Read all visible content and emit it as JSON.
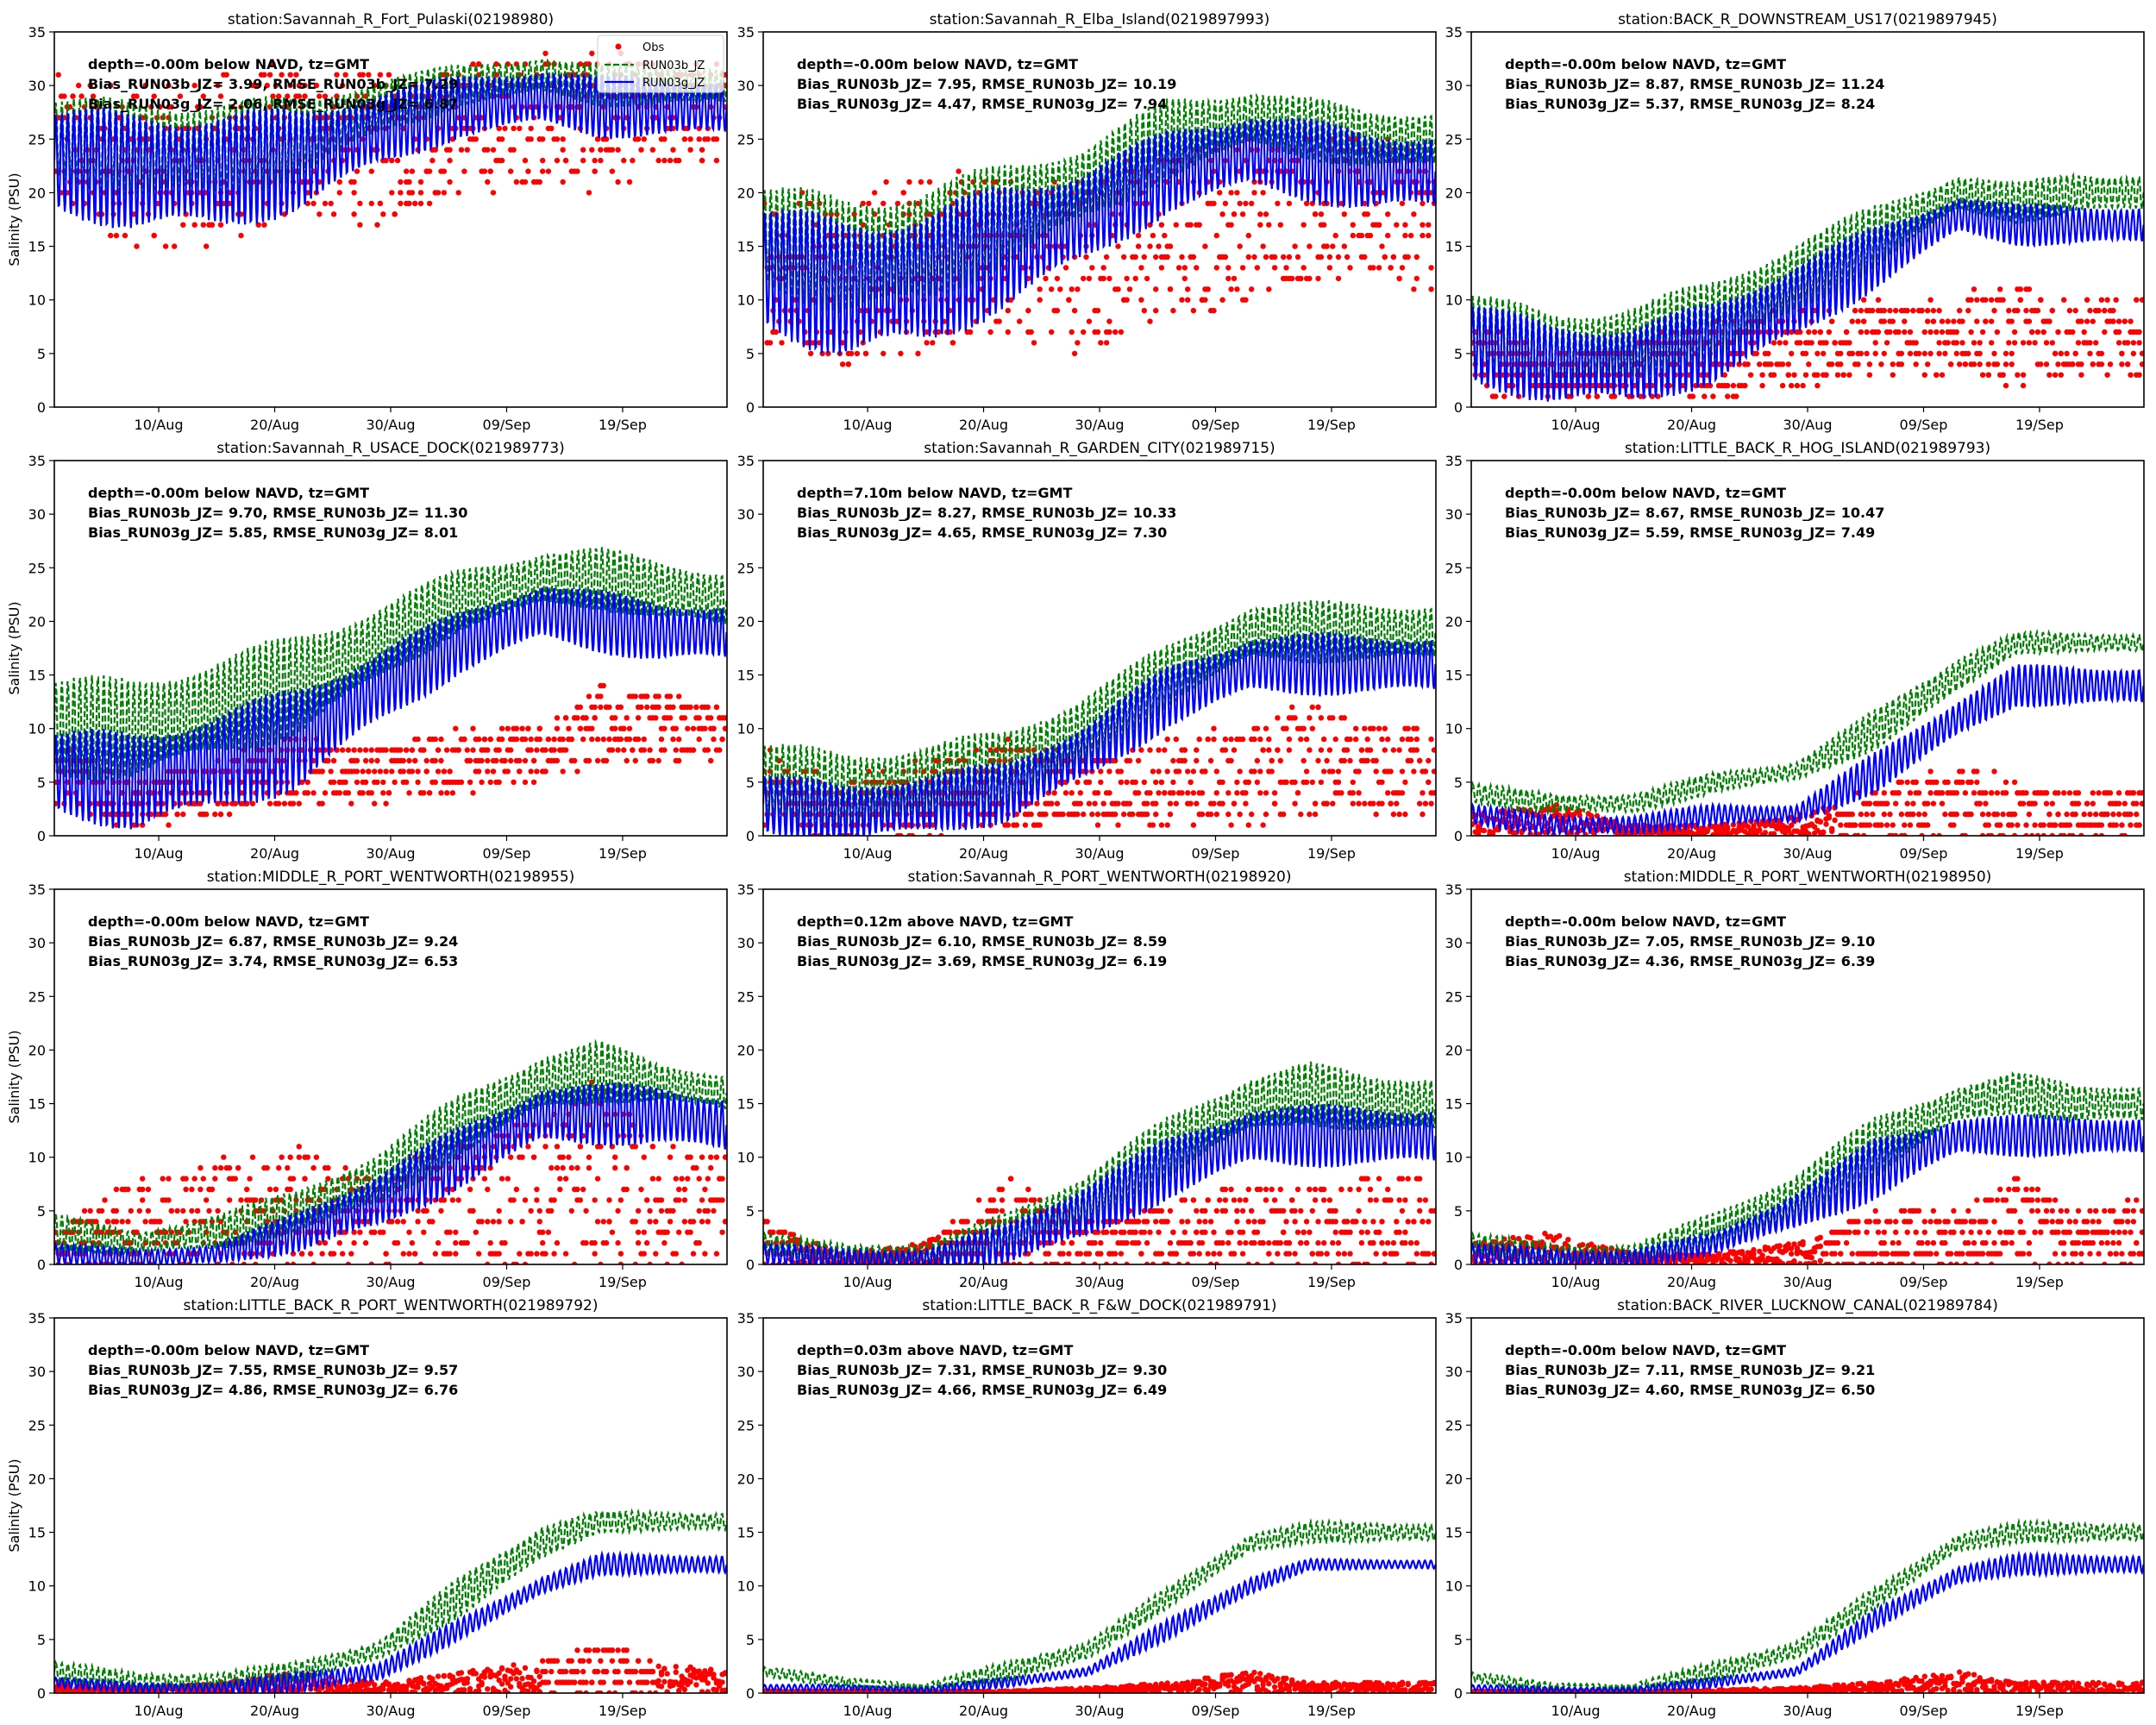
{
  "figure": {
    "ylabel": "Salinity (PSU)",
    "legend": {
      "placement": "upper-right of first panel",
      "entries": [
        {
          "label": "Obs",
          "style": "red dots",
          "color": "#ff0000"
        },
        {
          "label": "RUN03b_JZ",
          "style": "green dashed line",
          "color": "#008000"
        },
        {
          "label": "RUN03g_JZ",
          "style": "blue solid line",
          "color": "#0000ff"
        }
      ]
    }
  },
  "chart_data": {
    "type": "line",
    "layout": "4x3 grid of time-series panels",
    "x_range": [
      "01/Aug",
      "28/Sep"
    ],
    "x_ticks": [
      "10/Aug",
      "20/Aug",
      "30/Aug",
      "09/Sep",
      "19/Sep"
    ],
    "x_tick_days": [
      9,
      19,
      29,
      39,
      49
    ],
    "x_span_days": 58,
    "ylim": [
      0,
      35
    ],
    "y_ticks": [
      0,
      5,
      10,
      15,
      20,
      25,
      30,
      35
    ],
    "grid": false,
    "anchor_days": [
      0,
      7,
      14,
      21,
      28,
      35,
      42,
      47,
      52,
      58
    ],
    "panels": [
      {
        "title": "station:Savannah_R_Fort_Pulaski(02198980)",
        "annot": [
          "depth=-0.00m below NAVD, tz=GMT",
          "Bias_RUN03b_JZ=  3.99, RMSE_RUN03b_JZ=  7.29",
          "Bias_RUN03g_JZ=  2.06, RMSE_RUN03g_JZ=  6.87"
        ],
        "show_ylabel": true,
        "show_legend": true,
        "run03b": {
          "mean": [
            25,
            24,
            24,
            25,
            28,
            30,
            31,
            30,
            30,
            30
          ],
          "amp": [
            4,
            5,
            5,
            4,
            3,
            2,
            2,
            2,
            2,
            2
          ]
        },
        "run03g": {
          "mean": [
            23,
            22,
            22,
            23,
            26,
            28,
            29,
            28,
            28,
            28
          ],
          "amp": [
            5,
            6,
            6,
            5,
            4,
            3,
            3,
            3,
            3,
            3
          ]
        },
        "obs": {
          "low": [
            18,
            15,
            15,
            18,
            17,
            20,
            21,
            20,
            22,
            23
          ],
          "high": [
            31,
            30,
            31,
            32,
            31,
            32,
            33,
            33,
            32,
            32
          ]
        }
      },
      {
        "title": "station:Savannah_R_Elba_Island(0219897993)",
        "annot": [
          "depth=-0.00m below NAVD, tz=GMT",
          "Bias_RUN03b_JZ=  7.95, RMSE_RUN03b_JZ= 10.19",
          "Bias_RUN03g_JZ=  4.47, RMSE_RUN03g_JZ=  7.94"
        ],
        "show_ylabel": false,
        "show_legend": false,
        "run03b": {
          "mean": [
            16,
            14,
            15,
            18,
            21,
            25,
            27,
            26,
            25,
            25
          ],
          "amp": [
            5,
            6,
            6,
            5,
            4,
            4,
            3,
            3,
            3,
            3
          ]
        },
        "run03g": {
          "mean": [
            13,
            11,
            12,
            15,
            18,
            22,
            24,
            23,
            22,
            22
          ],
          "amp": [
            6,
            7,
            7,
            6,
            5,
            4,
            4,
            4,
            4,
            4
          ]
        },
        "obs": {
          "low": [
            6,
            4,
            5,
            7,
            5,
            8,
            10,
            12,
            12,
            11
          ],
          "high": [
            21,
            20,
            22,
            21,
            22,
            24,
            25,
            26,
            25,
            24
          ]
        }
      },
      {
        "title": "station:BACK_R_DOWNSTREAM_US17(0219897945)",
        "annot": [
          "depth=-0.00m below NAVD, tz=GMT",
          "Bias_RUN03b_JZ=  8.87, RMSE_RUN03b_JZ= 11.24",
          "Bias_RUN03g_JZ=  5.37, RMSE_RUN03g_JZ=  8.24"
        ],
        "show_ylabel": false,
        "show_legend": false,
        "run03b": {
          "mean": [
            7,
            5,
            6,
            8,
            12,
            16,
            20,
            19,
            20,
            20
          ],
          "amp": [
            4,
            4,
            4,
            4,
            4,
            3,
            2,
            2,
            2,
            2
          ]
        },
        "run03g": {
          "mean": [
            6,
            4,
            4,
            6,
            10,
            14,
            18,
            17,
            17,
            17
          ],
          "amp": [
            4,
            4,
            4,
            4,
            4,
            3,
            2,
            2,
            2,
            2
          ]
        },
        "obs": {
          "low": [
            1,
            1,
            1,
            1,
            2,
            3,
            3,
            2,
            3,
            3
          ],
          "high": [
            8,
            5,
            6,
            8,
            9,
            10,
            10,
            12,
            10,
            10
          ]
        }
      },
      {
        "title": "station:Savannah_R_USACE_DOCK(021989773)",
        "annot": [
          "depth=-0.00m below NAVD, tz=GMT",
          "Bias_RUN03b_JZ=  9.70, RMSE_RUN03b_JZ= 11.30",
          "Bias_RUN03g_JZ=  5.85, RMSE_RUN03g_JZ=  8.01"
        ],
        "show_ylabel": true,
        "show_legend": false,
        "run03b": {
          "mean": [
            10,
            10,
            12,
            14,
            18,
            22,
            24,
            24,
            23,
            22
          ],
          "amp": [
            5,
            5,
            5,
            5,
            4,
            3,
            3,
            3,
            3,
            3
          ]
        },
        "run03g": {
          "mean": [
            6,
            5,
            7,
            9,
            14,
            18,
            21,
            20,
            19,
            19
          ],
          "amp": [
            4,
            5,
            5,
            5,
            4,
            3,
            3,
            3,
            3,
            3
          ]
        },
        "obs": {
          "low": [
            3,
            1,
            2,
            3,
            3,
            4,
            5,
            7,
            7,
            7
          ],
          "high": [
            9,
            5,
            7,
            9,
            8,
            10,
            10,
            14,
            13,
            12
          ]
        }
      },
      {
        "title": "station:Savannah_R_GARDEN_CITY(021989715)",
        "annot": [
          "depth=7.10m below NAVD, tz=GMT",
          "Bias_RUN03b_JZ=  8.27, RMSE_RUN03b_JZ= 10.33",
          "Bias_RUN03g_JZ=  4.65, RMSE_RUN03g_JZ=  7.30"
        ],
        "show_ylabel": false,
        "show_legend": false,
        "run03b": {
          "mean": [
            5,
            4,
            5,
            6,
            10,
            15,
            19,
            19,
            19,
            19
          ],
          "amp": [
            4,
            4,
            4,
            4,
            4,
            3,
            3,
            3,
            3,
            3
          ]
        },
        "run03g": {
          "mean": [
            3,
            2,
            3,
            4,
            8,
            13,
            16,
            16,
            16,
            16
          ],
          "amp": [
            3,
            3,
            3,
            3,
            3,
            3,
            3,
            3,
            3,
            3
          ]
        },
        "obs": {
          "low": [
            1,
            0,
            0,
            1,
            1,
            1,
            1,
            2,
            2,
            2
          ],
          "high": [
            8,
            5,
            7,
            9,
            7,
            9,
            10,
            13,
            10,
            10
          ]
        }
      },
      {
        "title": "station:LITTLE_BACK_R_HOG_ISLAND(021989793)",
        "annot": [
          "depth=-0.00m below NAVD, tz=GMT",
          "Bias_RUN03b_JZ=  8.67, RMSE_RUN03b_JZ= 10.47",
          "Bias_RUN03g_JZ=  5.59, RMSE_RUN03g_JZ=  7.49"
        ],
        "show_ylabel": false,
        "show_legend": false,
        "run03b": {
          "mean": [
            4,
            3,
            3,
            5,
            6,
            10,
            15,
            18,
            18,
            18
          ],
          "amp": [
            1,
            1,
            1,
            1,
            1,
            2,
            2,
            1,
            1,
            1
          ]
        },
        "run03g": {
          "mean": [
            2,
            1,
            1,
            2,
            2,
            6,
            11,
            14,
            14,
            14
          ],
          "amp": [
            1,
            1,
            1,
            1,
            1,
            2,
            2,
            2,
            2,
            2
          ]
        },
        "obs": {
          "low": [
            0,
            0,
            0,
            0,
            0,
            0,
            0,
            0,
            0,
            0
          ],
          "high": [
            2,
            3,
            1,
            1,
            2,
            4,
            7,
            5,
            4,
            5
          ]
        }
      },
      {
        "title": "station:MIDDLE_R_PORT_WENTWORTH(02198955)",
        "annot": [
          "depth=-0.00m below NAVD, tz=GMT",
          "Bias_RUN03b_JZ=  6.87, RMSE_RUN03b_JZ=  9.24",
          "Bias_RUN03g_JZ=  3.74, RMSE_RUN03g_JZ=  6.53"
        ],
        "show_ylabel": true,
        "show_legend": false,
        "run03b": {
          "mean": [
            3,
            2,
            3,
            5,
            8,
            13,
            17,
            18,
            17,
            16
          ],
          "amp": [
            2,
            1,
            2,
            2,
            3,
            3,
            3,
            3,
            2,
            2
          ]
        },
        "run03g": {
          "mean": [
            1,
            0.5,
            1,
            3,
            6,
            10,
            14,
            14,
            14,
            13
          ],
          "amp": [
            1,
            1,
            1,
            2,
            3,
            3,
            3,
            3,
            3,
            3
          ]
        },
        "obs": {
          "low": [
            0,
            0,
            0,
            0,
            0,
            0,
            0,
            0,
            0,
            0
          ],
          "high": [
            3,
            8,
            10,
            11,
            8,
            12,
            14,
            17,
            11,
            10
          ]
        }
      },
      {
        "title": "station:Savannah_R_PORT_WENTWORTH(02198920)",
        "annot": [
          "depth=0.12m above NAVD, tz=GMT",
          "Bias_RUN03b_JZ=  6.10, RMSE_RUN03b_JZ=  8.59",
          "Bias_RUN03g_JZ=  3.69, RMSE_RUN03g_JZ=  6.19"
        ],
        "show_ylabel": false,
        "show_legend": false,
        "run03b": {
          "mean": [
            2,
            1,
            1,
            3,
            6,
            11,
            15,
            16,
            15,
            15
          ],
          "amp": [
            1,
            1,
            1,
            2,
            3,
            3,
            3,
            3,
            3,
            3
          ]
        },
        "run03g": {
          "mean": [
            1,
            0.5,
            0.5,
            2,
            5,
            9,
            12,
            12,
            12,
            12
          ],
          "amp": [
            1,
            1,
            1,
            2,
            3,
            3,
            3,
            3,
            3,
            3
          ]
        },
        "obs": {
          "low": [
            0,
            0,
            0,
            0,
            0,
            0,
            0,
            0,
            0,
            0
          ],
          "high": [
            4,
            1,
            2,
            8,
            4,
            6,
            7,
            7,
            8,
            8
          ]
        }
      },
      {
        "title": "station:MIDDLE_R_PORT_WENTWORTH(02198950)",
        "annot": [
          "depth=-0.00m below NAVD, tz=GMT",
          "Bias_RUN03b_JZ=  7.05, RMSE_RUN03b_JZ=  9.10",
          "Bias_RUN03g_JZ=  4.36, RMSE_RUN03g_JZ=  6.39"
        ],
        "show_ylabel": false,
        "show_legend": false,
        "run03b": {
          "mean": [
            2,
            1,
            1,
            3,
            6,
            11,
            15,
            16,
            15,
            15
          ],
          "amp": [
            1,
            1,
            1,
            2,
            3,
            3,
            2,
            2,
            2,
            2
          ]
        },
        "run03g": {
          "mean": [
            1,
            0.5,
            0.5,
            2,
            5,
            9,
            12,
            12,
            12,
            12
          ],
          "amp": [
            1,
            1,
            1,
            1,
            2,
            3,
            2,
            2,
            2,
            2
          ]
        },
        "obs": {
          "low": [
            0,
            0,
            0,
            0,
            0,
            0,
            0,
            0,
            0,
            0
          ],
          "high": [
            2,
            3,
            1,
            1,
            2,
            5,
            5,
            8,
            5,
            6
          ]
        }
      },
      {
        "title": "station:LITTLE_BACK_R_PORT_WENTWORTH(021989792)",
        "annot": [
          "depth=-0.00m below NAVD, tz=GMT",
          "Bias_RUN03b_JZ=  7.55, RMSE_RUN03b_JZ=  9.57",
          "Bias_RUN03g_JZ=  4.86, RMSE_RUN03g_JZ=  6.76"
        ],
        "show_ylabel": true,
        "show_legend": false,
        "run03b": {
          "mean": [
            2,
            1,
            1,
            2,
            4,
            9,
            14,
            16,
            16,
            16
          ],
          "amp": [
            1,
            1,
            1,
            1,
            1,
            2,
            2,
            1,
            1,
            1
          ]
        },
        "run03g": {
          "mean": [
            1,
            0.5,
            0.5,
            1,
            2,
            6,
            10,
            12,
            12,
            12
          ],
          "amp": [
            0.5,
            0.5,
            0.5,
            1,
            1,
            1,
            1,
            1,
            1,
            1
          ]
        },
        "obs": {
          "low": [
            0,
            0,
            0,
            0,
            0,
            0,
            0,
            0,
            0,
            0
          ],
          "high": [
            1,
            0.5,
            1,
            2,
            1,
            2,
            3,
            5,
            3,
            2
          ]
        }
      },
      {
        "title": "station:LITTLE_BACK_R_F&W_DOCK(021989791)",
        "annot": [
          "depth=0.03m above NAVD, tz=GMT",
          "Bias_RUN03b_JZ=  7.31, RMSE_RUN03b_JZ=  9.30",
          "Bias_RUN03g_JZ=  4.66, RMSE_RUN03g_JZ=  6.49"
        ],
        "show_ylabel": false,
        "show_legend": false,
        "run03b": {
          "mean": [
            2,
            1,
            0.5,
            2,
            4,
            9,
            14,
            15,
            15,
            15
          ],
          "amp": [
            0.5,
            0.5,
            0.5,
            1,
            1,
            1,
            1,
            1,
            1,
            1
          ]
        },
        "run03g": {
          "mean": [
            0.5,
            0.5,
            0.3,
            1,
            2,
            6,
            10,
            12,
            12,
            12
          ],
          "amp": [
            0.3,
            0.3,
            0.3,
            0.5,
            0.5,
            1,
            1,
            0.5,
            0.5,
            0.5
          ]
        },
        "obs": {
          "low": [
            0,
            0,
            0,
            0,
            0,
            0,
            0,
            0,
            0,
            0
          ],
          "high": [
            0.2,
            0.2,
            0.2,
            0.2,
            0.5,
            1,
            2,
            1,
            1,
            1
          ]
        }
      },
      {
        "title": "station:BACK_RIVER_LUCKNOW_CANAL(021989784)",
        "annot": [
          "depth=-0.00m below NAVD, tz=GMT",
          "Bias_RUN03b_JZ=  7.11, RMSE_RUN03b_JZ=  9.21",
          "Bias_RUN03g_JZ=  4.60, RMSE_RUN03g_JZ=  6.50"
        ],
        "show_ylabel": false,
        "show_legend": false,
        "run03b": {
          "mean": [
            1.5,
            0.5,
            0.5,
            2,
            4,
            9,
            14,
            15,
            15,
            15
          ],
          "amp": [
            0.5,
            0.5,
            0.5,
            1,
            1,
            1,
            1,
            1,
            1,
            1
          ]
        },
        "run03g": {
          "mean": [
            0.5,
            0.3,
            0.3,
            1,
            2,
            7,
            11,
            12,
            12,
            12
          ],
          "amp": [
            0.3,
            0.3,
            0.3,
            0.5,
            0.5,
            1,
            1,
            1,
            1,
            1
          ]
        },
        "obs": {
          "low": [
            0,
            0,
            0,
            0,
            0,
            0,
            0,
            0,
            0,
            0
          ],
          "high": [
            0.2,
            0.2,
            0.2,
            0.3,
            0.5,
            1,
            2,
            1,
            1,
            1
          ]
        }
      }
    ]
  }
}
